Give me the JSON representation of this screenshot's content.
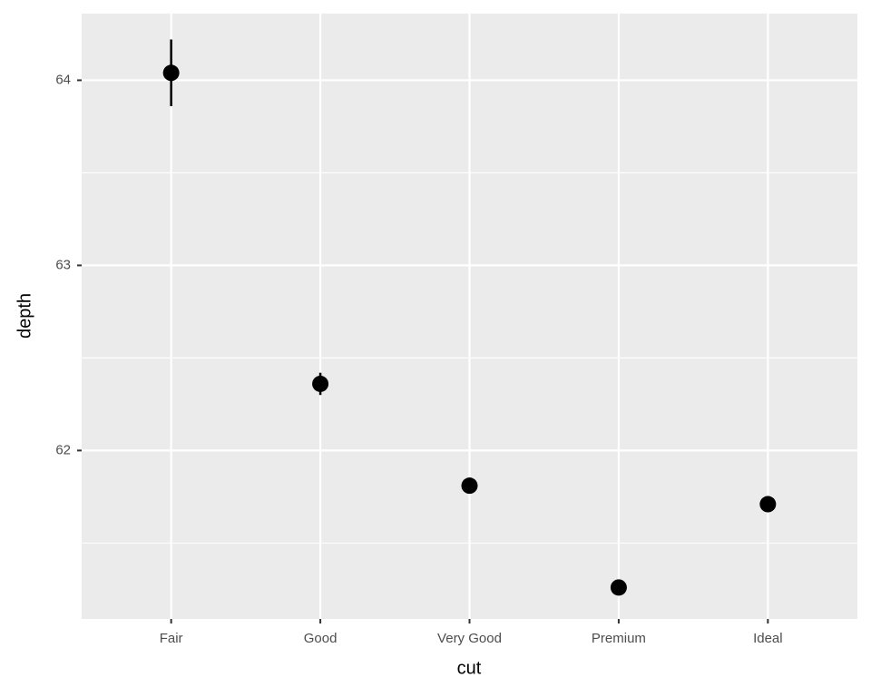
{
  "chart_data": {
    "type": "pointrange",
    "x_label": "cut",
    "y_label": "depth",
    "categories": [
      "Fair",
      "Good",
      "Very Good",
      "Premium",
      "Ideal"
    ],
    "values": [
      64.04,
      62.36,
      61.81,
      61.26,
      61.71
    ],
    "errors": [
      0.18,
      0.06,
      0.03,
      0.02,
      0.01
    ],
    "color": "#000000",
    "ylim": [
      61.09,
      64.36
    ],
    "yticks": [
      62,
      63,
      64
    ],
    "y_minor_grid": [
      61.5,
      62.5,
      63.5
    ],
    "grid": true
  }
}
